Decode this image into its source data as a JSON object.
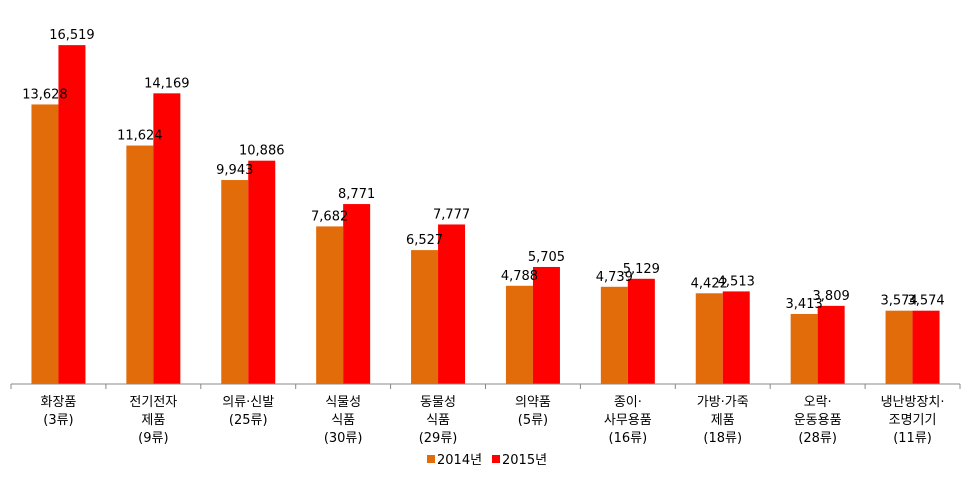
{
  "chart_data": {
    "type": "bar",
    "title": "",
    "xlabel": "",
    "ylabel": "",
    "ylim": [
      0,
      17500
    ],
    "grid": false,
    "legend_position": "bottom",
    "colors": {
      "2014년": "#e36c0a",
      "2015년": "#ff0000"
    },
    "categories": [
      [
        "화장품",
        "(3류)"
      ],
      [
        "전기전자",
        "제품",
        "(9류)"
      ],
      [
        "의류·신발",
        "(25류)"
      ],
      [
        "식물성",
        "식품",
        "(30류)"
      ],
      [
        "동물성",
        "식품",
        "(29류)"
      ],
      [
        "의약품",
        "(5류)"
      ],
      [
        "종이·",
        "사무용품",
        "(16류)"
      ],
      [
        "가방·가죽",
        "제품",
        "(18류)"
      ],
      [
        "오락·",
        "운동용품",
        "(28류)"
      ],
      [
        "냉난방장치·",
        "조명기기",
        "(11류)"
      ]
    ],
    "series": [
      {
        "name": "2014년",
        "values": [
          13628,
          11624,
          9943,
          7682,
          6527,
          4788,
          4739,
          4422,
          3413,
          3574
        ],
        "labels": [
          "13,628",
          "11,624",
          "9,943",
          "7,682",
          "6,527",
          "4,788",
          "4,739",
          "4,422",
          "3,413",
          "3,574"
        ]
      },
      {
        "name": "2015년",
        "values": [
          16519,
          14169,
          10886,
          8771,
          7777,
          5705,
          5129,
          4513,
          3809,
          3574
        ],
        "labels": [
          "16,519",
          "14,169",
          "10,886",
          "8,771",
          "7,777",
          "5,705",
          "5,129",
          "4,513",
          "3,809",
          "3,574"
        ]
      }
    ]
  }
}
